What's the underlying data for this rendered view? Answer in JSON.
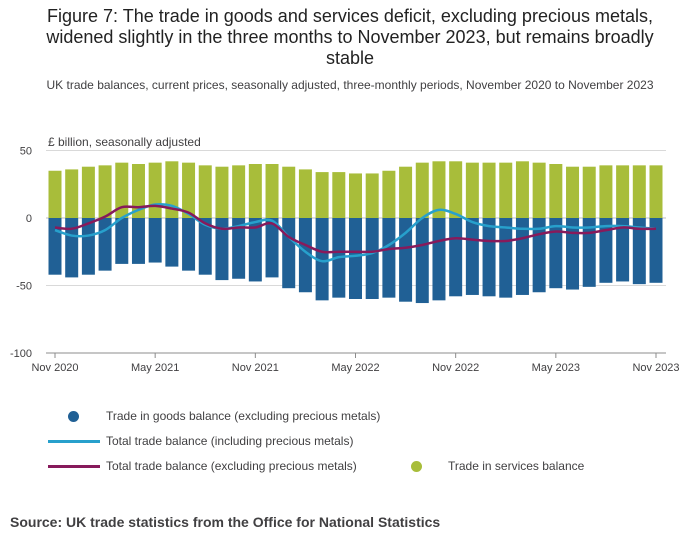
{
  "title": "Figure 7: The trade in goods and services deficit, excluding precious metals, widened slightly in the three months to November 2023, but remains broadly stable",
  "subtitle": "UK trade balances, current prices, seasonally adjusted, three-monthly periods, November 2020 to November 2023",
  "source": "Source: UK trade statistics from the Office for National Statistics",
  "colors": {
    "goods": "#206095",
    "services": "#a8bd3a",
    "total_incl": "#27a0cc",
    "total_excl": "#871a5b"
  },
  "chart_data": {
    "type": "bar",
    "ylabel": "£ billion, seasonally adjusted",
    "ylim": [
      -100,
      50
    ],
    "yticks": [
      50,
      0,
      -50,
      -100
    ],
    "xtick_labels": [
      "Nov 2020",
      "May 2021",
      "Nov 2021",
      "May 2022",
      "Nov 2022",
      "May 2023",
      "Nov 2023"
    ],
    "legend": {
      "goods": "Trade in goods balance (excluding precious metals)",
      "total_incl": "Total trade balance (including precious metals)",
      "total_excl": "Total trade balance (excluding precious metals)",
      "services": "Trade in services balance"
    },
    "services": [
      35,
      36,
      38,
      39,
      41,
      40,
      41,
      42,
      41,
      39,
      38,
      39,
      40,
      40,
      38,
      36,
      34,
      34,
      33,
      33,
      35,
      38,
      41,
      42,
      42,
      41,
      41,
      41,
      42,
      41,
      40,
      38,
      38,
      39,
      39,
      39,
      39
    ],
    "goods": [
      -42,
      -44,
      -42,
      -39,
      -34,
      -34,
      -33,
      -36,
      -39,
      -42,
      -46,
      -45,
      -47,
      -44,
      -52,
      -55,
      -61,
      -59,
      -60,
      -60,
      -59,
      -62,
      -63,
      -61,
      -58,
      -57,
      -58,
      -59,
      -57,
      -55,
      -52,
      -53,
      -51,
      -48,
      -47,
      -49,
      -48
    ],
    "total_incl": [
      -9,
      -13,
      -13,
      -9,
      0,
      6,
      10,
      9,
      3,
      -5,
      -8,
      -6,
      -3,
      -2,
      -14,
      -25,
      -32,
      -29,
      -28,
      -26,
      -20,
      -11,
      0,
      6,
      3,
      -3,
      -6,
      -7,
      -8,
      -8,
      -6,
      -7,
      -7,
      -6,
      -6,
      -7,
      -8
    ],
    "total_excl": [
      -7,
      -8,
      -4,
      1,
      8,
      8,
      9,
      7,
      4,
      -4,
      -8,
      -7,
      -7,
      -4,
      -14,
      -20,
      -25,
      -25,
      -25,
      -25,
      -23,
      -22,
      -20,
      -17,
      -15,
      -16,
      -17,
      -17,
      -15,
      -12,
      -10,
      -11,
      -11,
      -9,
      -7,
      -8,
      -8
    ]
  }
}
